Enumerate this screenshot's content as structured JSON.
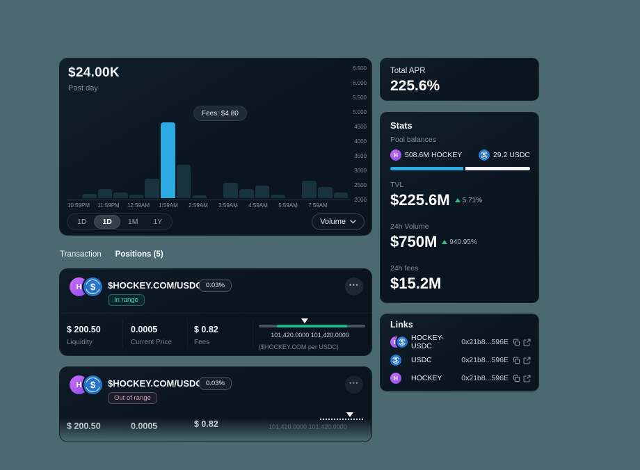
{
  "chart_card": {
    "title": "$24.00K",
    "subtitle": "Past day",
    "tooltip": "Fees: $4.80",
    "ranges": [
      "1D",
      "1D",
      "1M",
      "1Y"
    ],
    "volume_selector": "Volume"
  },
  "chart_data": {
    "type": "bar",
    "title": "$24.00K",
    "subtitle": "Past day",
    "x_tick_labels": [
      "10:59PM",
      "11:59PM",
      "12:59AM",
      "1:59AM",
      "2:59AM",
      "3:59AM",
      "4:59AM",
      "5:59AM",
      "7:59AM"
    ],
    "y_tick_labels": [
      "6.500",
      "6.000",
      "5.500",
      "5.000",
      "4500",
      "4000",
      "3500",
      "3000",
      "2500",
      "2000"
    ],
    "ylim": [
      2000,
      6500
    ],
    "values": [
      2140,
      2310,
      2200,
      2120,
      2665,
      4595,
      3145,
      2105,
      null,
      2525,
      2310,
      2430,
      2130,
      null,
      2585,
      2380,
      2190
    ],
    "highlight_index": 5,
    "highlight_tooltip": "Fees: $4.80",
    "bar_color": "#18323e",
    "highlight_color": "#2BA9E1",
    "legend": "Volume"
  },
  "tabs": {
    "transaction": "Transaction",
    "positions": "Positions (5)"
  },
  "icons": {
    "hockey_letter": "H",
    "usdc_symbol": "$"
  },
  "positions": [
    {
      "pair": "$HOCKEY.COM/USDC",
      "fee_tier": "0.03%",
      "range_status": "In range",
      "liquidity_value": "$ 200.50",
      "liquidity_label": "Liquidity",
      "price_value": "0.0005",
      "price_label": "Current Price",
      "fees_value": "$ 0.82",
      "fees_label": "Fees",
      "range_bounds": "101,420.0000 101,420.0000",
      "range_unit": "($HOCKEY.COM per USDC)"
    },
    {
      "pair": "$HOCKEY.COM/USDC",
      "fee_tier": "0.03%",
      "range_status": "Out of range",
      "liquidity_value": "$ 200.50",
      "price_value": "0.0005",
      "fees_value": "$ 0.82",
      "range_bounds": "101,420.0000 101,420.0000"
    }
  ],
  "sidebar": {
    "apr": {
      "label": "Total APR",
      "value": "225.6%"
    },
    "stats": {
      "title": "Stats",
      "pool_balances_label": "Pool balances",
      "token0_amount": "508.6M HOCKEY",
      "token1_amount": "29.2 USDC",
      "balance_split_pct": 52,
      "tvl_label": "TVL",
      "tvl_value": "$225.6M",
      "tvl_change": "5.71%",
      "volume_label": "24h Volume",
      "volume_value": "$750M",
      "volume_change": "940.95%",
      "fees_label": "24h fees",
      "fees_value": "$15.2M"
    },
    "links": {
      "title": "Links",
      "items": [
        {
          "name": "HOCKEY-USDC",
          "address": "0x21b8...596E"
        },
        {
          "name": "USDC",
          "address": "0x21b8...596E"
        },
        {
          "name": "HOCKEY",
          "address": "0x21b8...596E"
        }
      ]
    }
  }
}
